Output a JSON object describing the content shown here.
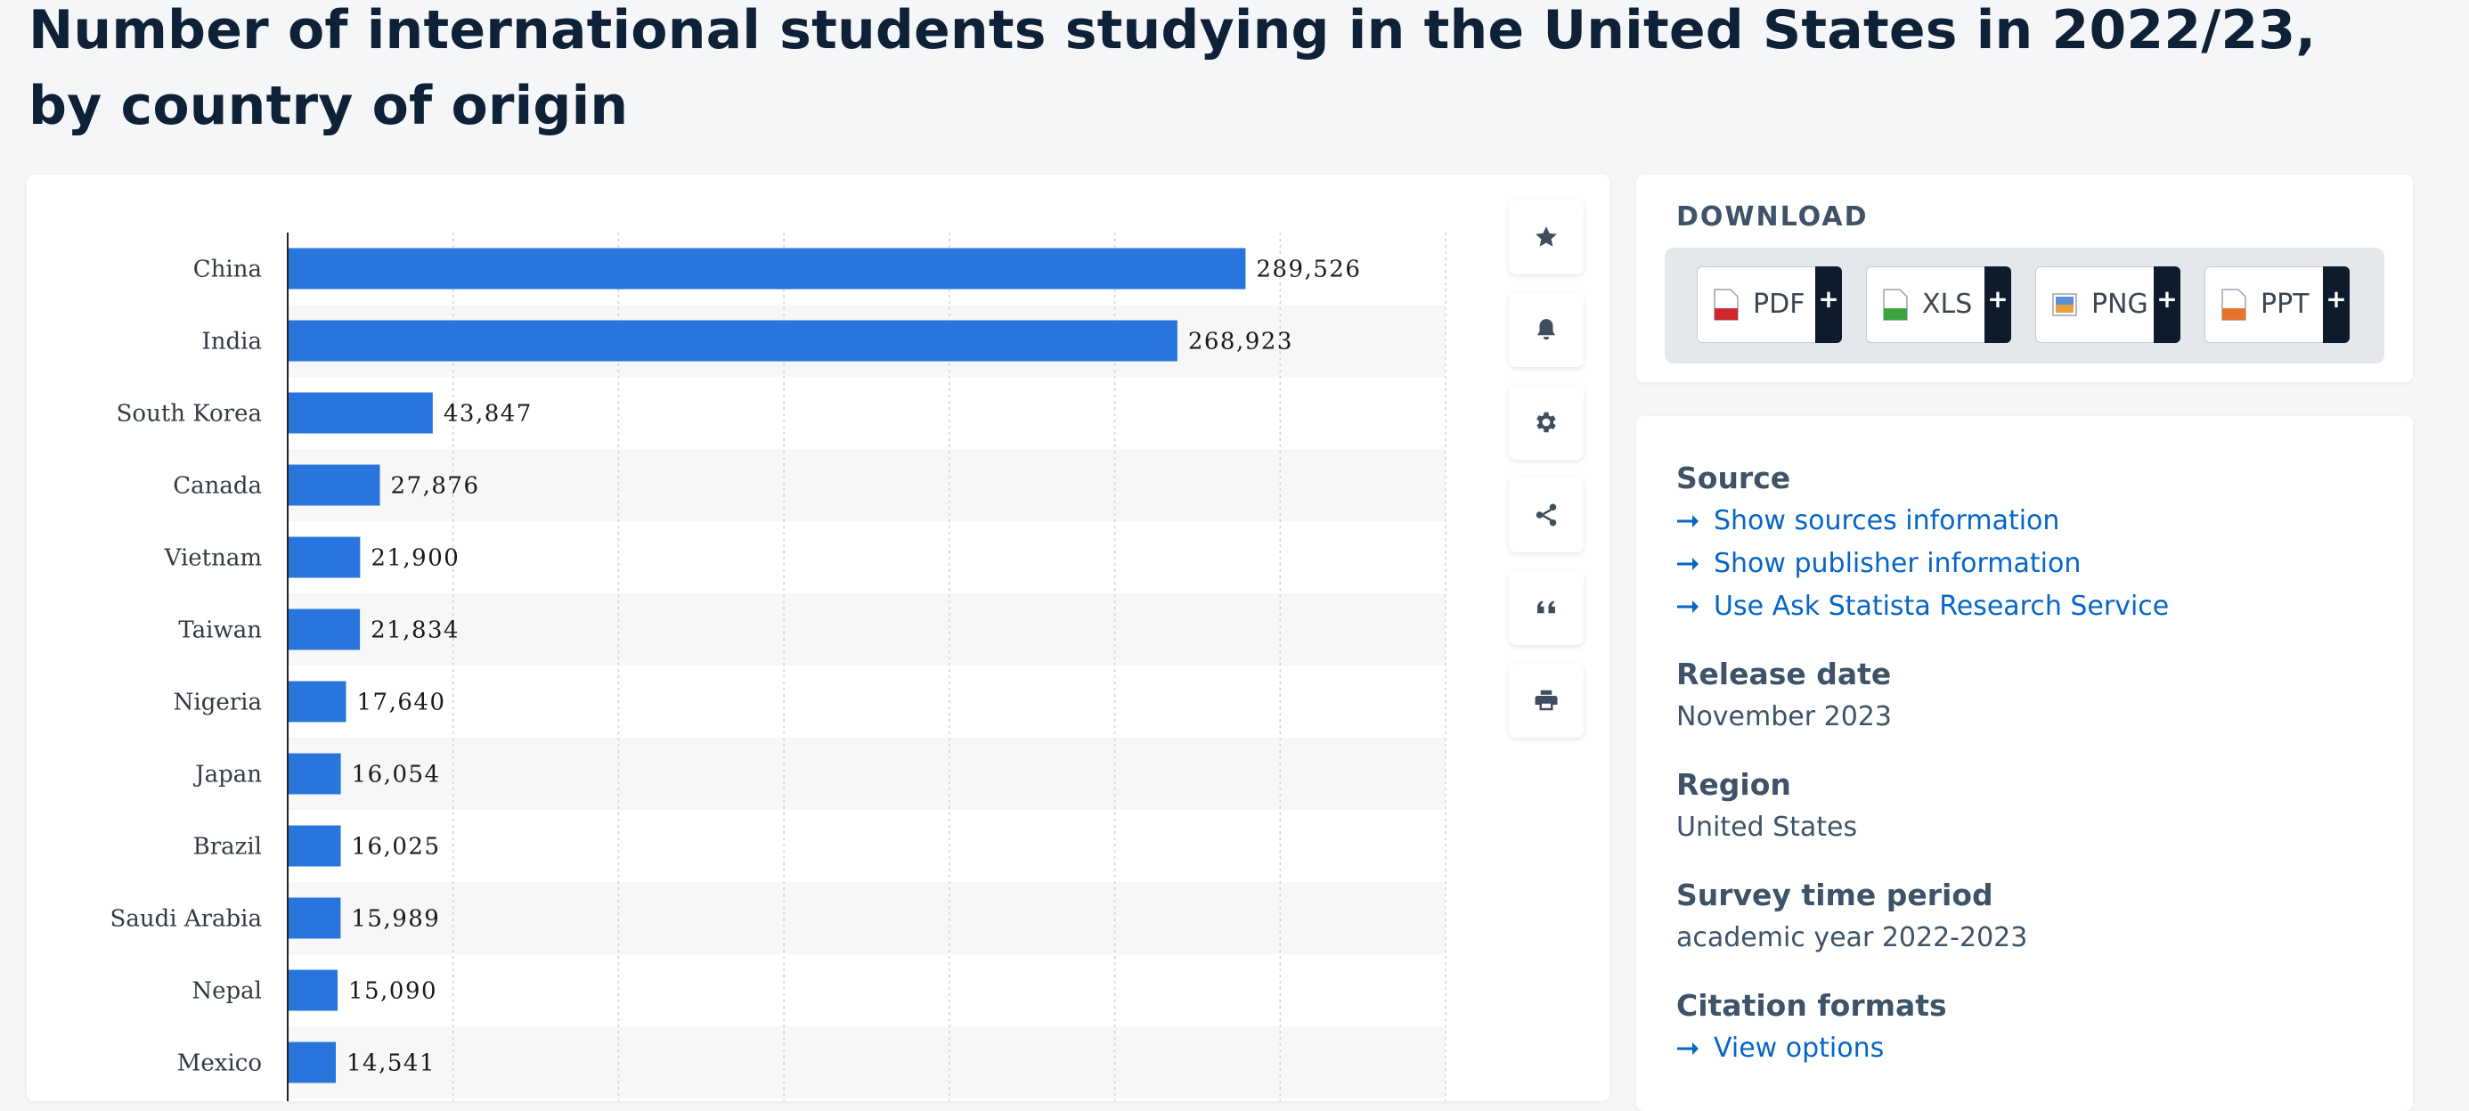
{
  "page": {
    "title": "Number of international students studying in the United States in 2022/23, by country of origin"
  },
  "colors": {
    "bar": "#2876dd",
    "accent_link": "#0666c6",
    "heading": "#3e5368",
    "plus_bg": "#0d1b2a"
  },
  "toolbar": {
    "buttons": [
      {
        "name": "favorite",
        "icon": "star-icon"
      },
      {
        "name": "notification",
        "icon": "bell-icon"
      },
      {
        "name": "settings",
        "icon": "gear-icon"
      },
      {
        "name": "share",
        "icon": "share-icon"
      },
      {
        "name": "cite",
        "icon": "quote-icon"
      },
      {
        "name": "print",
        "icon": "printer-icon"
      }
    ]
  },
  "download": {
    "title": "DOWNLOAD",
    "buttons": [
      {
        "label": "PDF",
        "icon": "pdf-file-icon",
        "plus": "+"
      },
      {
        "label": "XLS",
        "icon": "xls-file-icon",
        "plus": "+"
      },
      {
        "label": "PNG",
        "icon": "png-file-icon",
        "plus": "+"
      },
      {
        "label": "PPT",
        "icon": "ppt-file-icon",
        "plus": "+"
      }
    ]
  },
  "info": {
    "source_heading": "Source",
    "source_links": [
      "Show sources information",
      "Show publisher information",
      "Use Ask Statista Research Service"
    ],
    "release_heading": "Release date",
    "release_value": "November 2023",
    "region_heading": "Region",
    "region_value": "United States",
    "survey_heading": "Survey time period",
    "survey_value": "academic year 2022-2023",
    "citation_heading": "Citation formats",
    "citation_link": "View options"
  },
  "chart_data": {
    "type": "bar",
    "orientation": "horizontal",
    "title": "",
    "xlabel": "",
    "ylabel": "",
    "grid": true,
    "xlim": [
      0,
      350000
    ],
    "categories": [
      "China",
      "India",
      "South Korea",
      "Canada",
      "Vietnam",
      "Taiwan",
      "Nigeria",
      "Japan",
      "Brazil",
      "Saudi Arabia",
      "Nepal",
      "Mexico"
    ],
    "values": [
      289526,
      268923,
      43847,
      27876,
      21900,
      21834,
      17640,
      16054,
      16025,
      15989,
      15090,
      14541
    ],
    "value_labels": [
      "289,526",
      "268,923",
      "43,847",
      "27,876",
      "21,900",
      "21,834",
      "17,640",
      "16,054",
      "16,025",
      "15,989",
      "15,090",
      "14,541"
    ]
  }
}
